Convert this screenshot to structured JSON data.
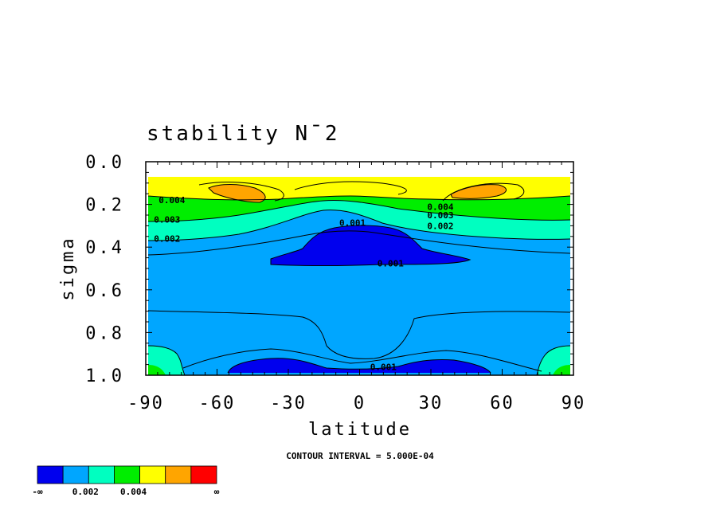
{
  "chart_data": {
    "type": "contour",
    "title": "stability N¯2",
    "xlabel": "latitude",
    "ylabel": "sigma",
    "xlim": [
      -90,
      90
    ],
    "ylim": [
      0.0,
      1.0
    ],
    "y_inverted": true,
    "x_ticks": [
      "-90",
      "-60",
      "-30",
      "0",
      "30",
      "60",
      "90"
    ],
    "x_tick_values": [
      -90,
      -60,
      -30,
      0,
      30,
      60,
      90
    ],
    "y_ticks": [
      "0.0",
      "0.2",
      "0.4",
      "0.6",
      "0.8",
      "1.0"
    ],
    "y_tick_values": [
      0.0,
      0.2,
      0.4,
      0.6,
      0.8,
      1.0
    ],
    "contour_interval_text": "CONTOUR INTERVAL = 5.000E-04",
    "contour_labels": [
      {
        "text": "0.004",
        "lat": -79,
        "sigma": 0.18
      },
      {
        "text": "0.003",
        "lat": -81,
        "sigma": 0.27
      },
      {
        "text": "0.002",
        "lat": -81,
        "sigma": 0.36
      },
      {
        "text": "0.001",
        "lat": -3,
        "sigma": 0.285
      },
      {
        "text": "0.001",
        "lat": 13,
        "sigma": 0.475
      },
      {
        "text": "0.001",
        "lat": 10,
        "sigma": 0.96
      },
      {
        "text": "0.004",
        "lat": 34,
        "sigma": 0.21
      },
      {
        "text": "0.003",
        "lat": 34,
        "sigma": 0.25
      },
      {
        "text": "0.002",
        "lat": 34,
        "sigma": 0.3
      }
    ],
    "colorbar": {
      "colors": [
        "#0000ee",
        "#00a6ff",
        "#00ffc0",
        "#00ee00",
        "#ffff00",
        "#ffa500",
        "#ff0000"
      ],
      "labels": [
        "-∞",
        "0.002",
        "0.004",
        "∞"
      ]
    },
    "fill_colors": {
      "background": "#00a6ff",
      "low": "#0000ee",
      "mid_green": "#00ffc0",
      "green": "#00ee00",
      "yellow": "#ffff00",
      "orange": "#ffa500"
    }
  }
}
